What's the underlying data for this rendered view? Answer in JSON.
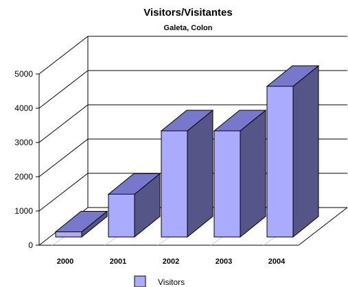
{
  "chart_data": {
    "type": "bar",
    "title": "Visitors/Visitantes",
    "subtitle": "Galeta, Colon",
    "categories": [
      "2000",
      "2001",
      "2002",
      "2003",
      "2004"
    ],
    "series": [
      {
        "name": "Visitors",
        "values": [
          150,
          1250,
          3100,
          3100,
          4400
        ]
      }
    ],
    "ylim": [
      0,
      5000
    ],
    "yticks": [
      0,
      1000,
      2000,
      3000,
      4000,
      5000
    ],
    "grid": true,
    "legend": "bottom",
    "colors": {
      "bar_front": "#aaaaff",
      "bar_top": "#7777cc",
      "bar_side": "#555588",
      "axis": "#000000",
      "floor_grid": "#cccccc"
    }
  }
}
